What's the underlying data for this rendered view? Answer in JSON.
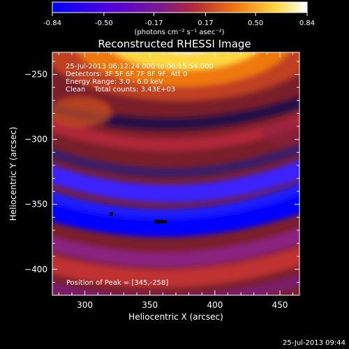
{
  "title": "Reconstructed RHESSI Image",
  "colorbar": {
    "ticks": [
      "-0.84",
      "-0.50",
      "-0.17",
      "0.17",
      "0.50",
      "0.84"
    ],
    "units": "(photons cm⁻² s⁻¹ asec⁻²)",
    "range": [
      -0.84,
      0.84
    ]
  },
  "info": {
    "time_range": "25-Jul-2013 06:12:24.000 to 06:15:54.000",
    "detectors": "Detectors: 3F 5F 6F 7F 8F 9F, Att 0",
    "energy_range": "Energy Range: 3.0 - 6.0 keV",
    "clean": "Clean    Total counts: 3.43E+03"
  },
  "peak_text": "Position of Peak = [345,-258]",
  "timestamp": "25-Jul-2013 09:44",
  "chart_data": {
    "type": "heatmap",
    "title": "Reconstructed RHESSI Image",
    "xlabel": "Heliocentric X (arcsec)",
    "ylabel": "Heliocentric Y (arcsec)",
    "xlim": [
      275,
      465
    ],
    "ylim": [
      -420,
      -233
    ],
    "x_ticks": [
      300,
      350,
      400,
      450
    ],
    "y_ticks": [
      -250,
      -300,
      -350,
      -400
    ],
    "value_range": [
      -0.84,
      0.84
    ],
    "peak_position": [
      345,
      -258
    ],
    "colormap": [
      "#0000ff",
      "#5a00d8",
      "#8a1f8a",
      "#c0302f",
      "#f07810",
      "#ffd840",
      "#ffffff"
    ]
  }
}
